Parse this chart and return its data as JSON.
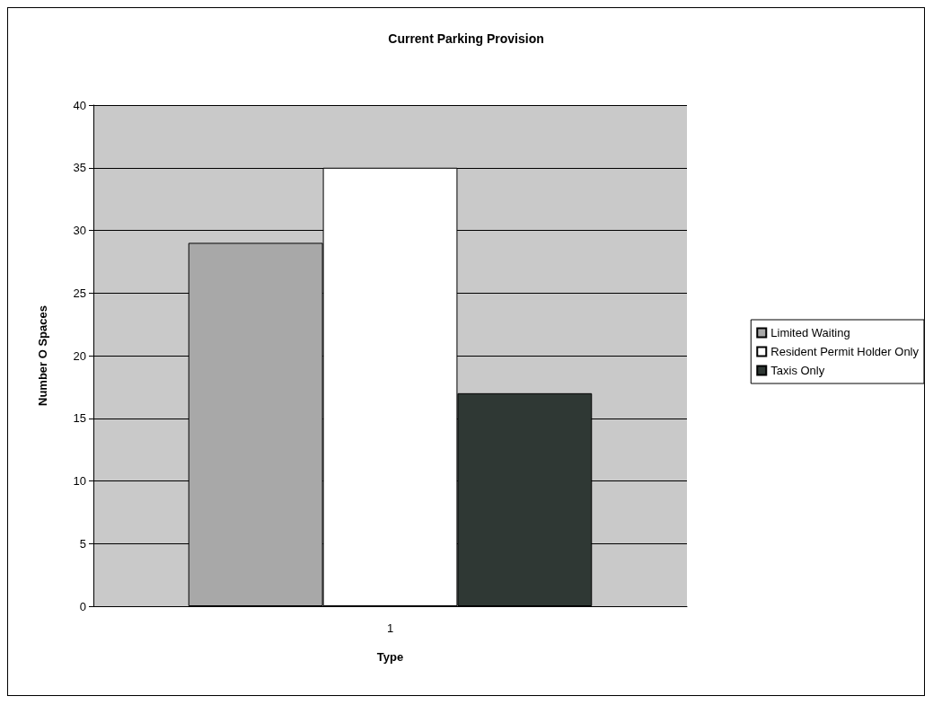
{
  "chart_data": {
    "type": "bar",
    "title": "Current Parking Provision",
    "xlabel": "Type",
    "ylabel": "Number O Spaces",
    "categories": [
      "1"
    ],
    "series": [
      {
        "name": "Limited Waiting",
        "color": "#a8a8a8",
        "values": [
          29
        ]
      },
      {
        "name": "Resident Permit Holder Only",
        "color": "#ffffff",
        "values": [
          35
        ]
      },
      {
        "name": "Taxis Only",
        "color": "#2f3834",
        "values": [
          17
        ]
      }
    ],
    "ylim": [
      0,
      40
    ],
    "yticks": [
      0,
      5,
      10,
      15,
      20,
      25,
      30,
      35,
      40
    ],
    "grid": "y",
    "legend": "right"
  }
}
